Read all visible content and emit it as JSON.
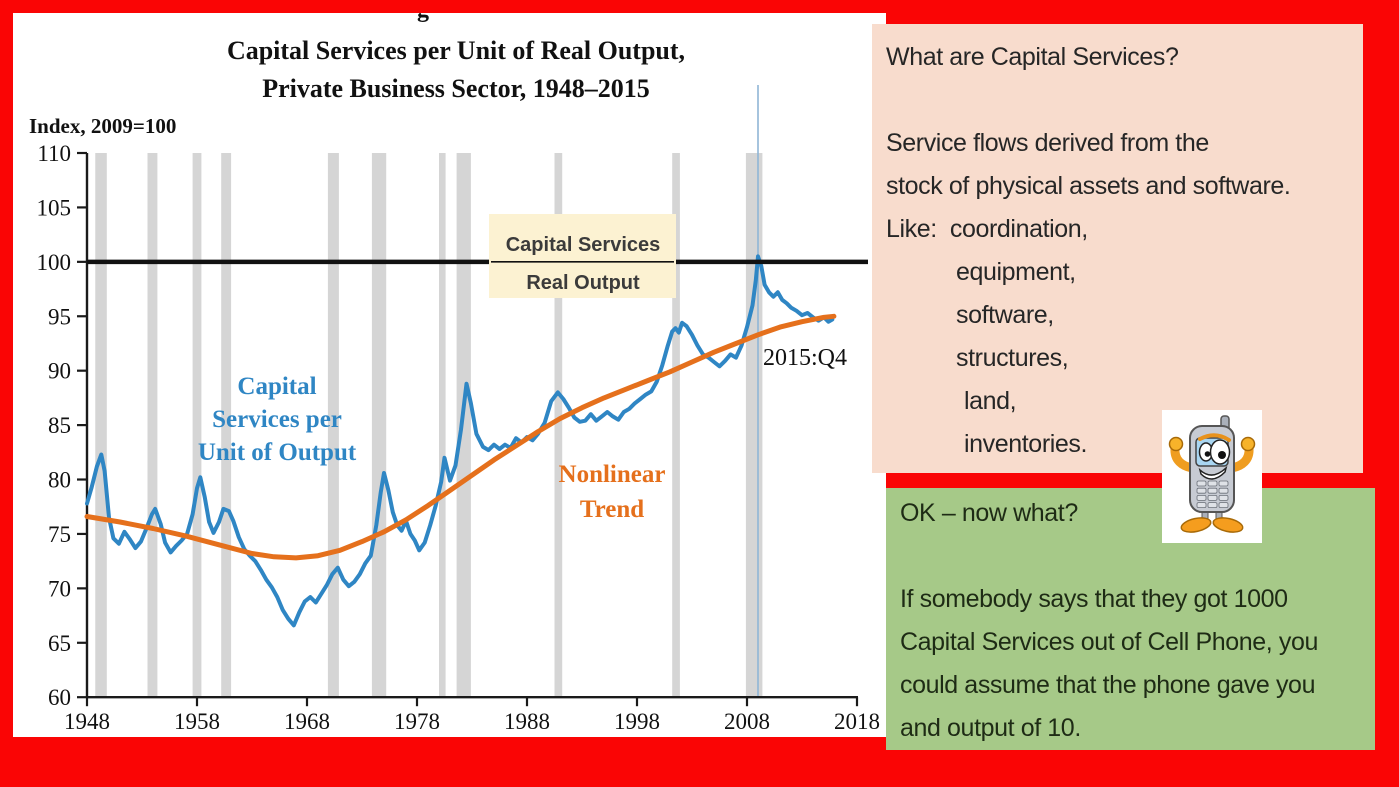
{
  "slide": {
    "cropped_heading_fragment": "g"
  },
  "chart": {
    "title_line1": "Capital Services per Unit of Real Output,",
    "title_line2": "Private Business Sector, 1948–2015",
    "axis_note": "Index, 2009=100",
    "annotations": {
      "series_label_line1": "Capital",
      "series_label_line2": "Services per",
      "series_label_line3": "Unit of Output",
      "trend_label_line1": "Nonlinear",
      "trend_label_line2": "Trend",
      "end_label": "2015:Q4",
      "legend_numerator": "Capital Services",
      "legend_denominator": "Real Output"
    },
    "colors": {
      "series_blue": "#2f86c4",
      "trend_orange": "#e5701c",
      "recession_gray": "#d5d5d5",
      "legend_bg": "#fcf2d2",
      "reference_black": "#111111",
      "marker_line_blue": "#8fb6d6",
      "slide_border_red": "#fa0505",
      "pink_panel": "#f8dccd",
      "green_panel": "#a6c988"
    }
  },
  "chart_data": {
    "type": "line",
    "title": "Capital Services per Unit of Real Output, Private Business Sector, 1948–2015",
    "ylabel": "Index, 2009=100",
    "xlabel": "",
    "xlim": [
      1948,
      2018
    ],
    "ylim": [
      60,
      110
    ],
    "x_ticks": [
      1948,
      1958,
      1968,
      1978,
      1988,
      1998,
      2008,
      2018
    ],
    "y_ticks": [
      60,
      65,
      70,
      75,
      80,
      85,
      90,
      95,
      100,
      105,
      110
    ],
    "grid": false,
    "reference_line_y": 100,
    "vertical_marker_year": 2009,
    "recession_bands": [
      [
        1948.75,
        1949.8
      ],
      [
        1953.5,
        1954.4
      ],
      [
        1957.6,
        1958.4
      ],
      [
        1960.2,
        1961.1
      ],
      [
        1969.9,
        1970.9
      ],
      [
        1973.9,
        1975.2
      ],
      [
        1980.0,
        1980.6
      ],
      [
        1981.6,
        1982.9
      ],
      [
        1990.5,
        1991.2
      ],
      [
        2001.2,
        2001.9
      ],
      [
        2007.9,
        2009.4
      ]
    ],
    "series": [
      {
        "name": "Capital Services per Unit of Output",
        "color": "#2f86c4",
        "points": [
          [
            1948.0,
            77.8
          ],
          [
            1948.4,
            79.2
          ],
          [
            1948.9,
            81.2
          ],
          [
            1949.3,
            82.3
          ],
          [
            1949.6,
            80.8
          ],
          [
            1950.0,
            76.5
          ],
          [
            1950.4,
            74.6
          ],
          [
            1950.9,
            74.1
          ],
          [
            1951.4,
            75.2
          ],
          [
            1951.9,
            74.5
          ],
          [
            1952.4,
            73.7
          ],
          [
            1952.9,
            74.3
          ],
          [
            1953.4,
            75.5
          ],
          [
            1953.9,
            76.8
          ],
          [
            1954.2,
            77.3
          ],
          [
            1954.7,
            75.9
          ],
          [
            1955.1,
            74.2
          ],
          [
            1955.6,
            73.3
          ],
          [
            1956.1,
            73.9
          ],
          [
            1956.6,
            74.4
          ],
          [
            1957.1,
            75.0
          ],
          [
            1957.6,
            76.8
          ],
          [
            1958.0,
            79.2
          ],
          [
            1958.3,
            80.2
          ],
          [
            1958.7,
            78.4
          ],
          [
            1959.1,
            76.1
          ],
          [
            1959.5,
            75.1
          ],
          [
            1960.0,
            76.1
          ],
          [
            1960.4,
            77.3
          ],
          [
            1960.9,
            77.1
          ],
          [
            1961.3,
            76.2
          ],
          [
            1961.8,
            74.7
          ],
          [
            1962.3,
            73.6
          ],
          [
            1962.8,
            73.0
          ],
          [
            1963.3,
            72.5
          ],
          [
            1963.8,
            71.7
          ],
          [
            1964.3,
            70.8
          ],
          [
            1964.8,
            70.1
          ],
          [
            1965.3,
            69.2
          ],
          [
            1965.8,
            68.0
          ],
          [
            1966.3,
            67.2
          ],
          [
            1966.8,
            66.6
          ],
          [
            1967.3,
            67.8
          ],
          [
            1967.8,
            68.8
          ],
          [
            1968.3,
            69.2
          ],
          [
            1968.8,
            68.7
          ],
          [
            1969.3,
            69.5
          ],
          [
            1969.8,
            70.3
          ],
          [
            1970.3,
            71.3
          ],
          [
            1970.8,
            71.9
          ],
          [
            1971.3,
            70.8
          ],
          [
            1971.8,
            70.2
          ],
          [
            1972.3,
            70.6
          ],
          [
            1972.8,
            71.3
          ],
          [
            1973.3,
            72.3
          ],
          [
            1973.8,
            73.0
          ],
          [
            1974.3,
            75.8
          ],
          [
            1974.7,
            78.8
          ],
          [
            1975.0,
            80.6
          ],
          [
            1975.4,
            79.0
          ],
          [
            1975.8,
            77.0
          ],
          [
            1976.2,
            75.8
          ],
          [
            1976.6,
            75.3
          ],
          [
            1977.0,
            76.2
          ],
          [
            1977.4,
            75.0
          ],
          [
            1977.8,
            74.4
          ],
          [
            1978.2,
            73.5
          ],
          [
            1978.7,
            74.2
          ],
          [
            1979.2,
            75.8
          ],
          [
            1979.7,
            77.6
          ],
          [
            1980.2,
            79.8
          ],
          [
            1980.5,
            82.0
          ],
          [
            1981.0,
            79.9
          ],
          [
            1981.5,
            81.3
          ],
          [
            1982.0,
            84.6
          ],
          [
            1982.5,
            88.8
          ],
          [
            1982.9,
            87.0
          ],
          [
            1983.4,
            84.2
          ],
          [
            1984.0,
            83.0
          ],
          [
            1984.5,
            82.7
          ],
          [
            1985.0,
            83.2
          ],
          [
            1985.5,
            82.8
          ],
          [
            1986.0,
            83.2
          ],
          [
            1986.5,
            82.9
          ],
          [
            1987.0,
            83.8
          ],
          [
            1987.5,
            83.4
          ],
          [
            1988.0,
            83.9
          ],
          [
            1988.5,
            83.6
          ],
          [
            1989.0,
            84.2
          ],
          [
            1989.6,
            85.2
          ],
          [
            1990.2,
            87.2
          ],
          [
            1990.8,
            88.0
          ],
          [
            1991.3,
            87.4
          ],
          [
            1991.8,
            86.6
          ],
          [
            1992.3,
            85.7
          ],
          [
            1992.8,
            85.3
          ],
          [
            1993.3,
            85.4
          ],
          [
            1993.8,
            86.0
          ],
          [
            1994.3,
            85.4
          ],
          [
            1994.8,
            85.8
          ],
          [
            1995.3,
            86.2
          ],
          [
            1995.8,
            85.8
          ],
          [
            1996.3,
            85.5
          ],
          [
            1996.8,
            86.2
          ],
          [
            1997.3,
            86.5
          ],
          [
            1997.8,
            87.0
          ],
          [
            1998.3,
            87.4
          ],
          [
            1998.8,
            87.8
          ],
          [
            1999.3,
            88.1
          ],
          [
            1999.8,
            89.0
          ],
          [
            2000.3,
            90.5
          ],
          [
            2000.8,
            92.3
          ],
          [
            2001.2,
            93.6
          ],
          [
            2001.5,
            93.9
          ],
          [
            2001.8,
            93.5
          ],
          [
            2002.1,
            94.4
          ],
          [
            2002.5,
            94.1
          ],
          [
            2003.0,
            93.3
          ],
          [
            2003.5,
            92.3
          ],
          [
            2004.0,
            91.5
          ],
          [
            2004.5,
            91.2
          ],
          [
            2005.0,
            90.8
          ],
          [
            2005.5,
            90.4
          ],
          [
            2006.0,
            90.9
          ],
          [
            2006.5,
            91.5
          ],
          [
            2007.0,
            91.2
          ],
          [
            2007.5,
            92.3
          ],
          [
            2008.0,
            94.0
          ],
          [
            2008.5,
            96.0
          ],
          [
            2008.8,
            98.3
          ],
          [
            2009.0,
            100.5
          ],
          [
            2009.3,
            99.6
          ],
          [
            2009.6,
            97.9
          ],
          [
            2010.0,
            97.2
          ],
          [
            2010.4,
            96.8
          ],
          [
            2010.8,
            97.2
          ],
          [
            2011.2,
            96.5
          ],
          [
            2011.6,
            96.2
          ],
          [
            2012.0,
            95.8
          ],
          [
            2012.5,
            95.5
          ],
          [
            2013.0,
            95.1
          ],
          [
            2013.5,
            95.3
          ],
          [
            2014.0,
            94.9
          ],
          [
            2014.5,
            94.6
          ],
          [
            2015.0,
            94.9
          ],
          [
            2015.4,
            94.5
          ],
          [
            2015.75,
            94.7
          ]
        ]
      },
      {
        "name": "Nonlinear Trend",
        "color": "#e5701c",
        "points": [
          [
            1948,
            76.6
          ],
          [
            1951,
            76.1
          ],
          [
            1954,
            75.5
          ],
          [
            1957,
            74.8
          ],
          [
            1960,
            74.0
          ],
          [
            1963,
            73.2
          ],
          [
            1965,
            72.9
          ],
          [
            1967,
            72.8
          ],
          [
            1969,
            73.0
          ],
          [
            1971,
            73.5
          ],
          [
            1973,
            74.3
          ],
          [
            1975,
            75.2
          ],
          [
            1977,
            76.3
          ],
          [
            1979,
            77.6
          ],
          [
            1981,
            79.0
          ],
          [
            1983,
            80.4
          ],
          [
            1985,
            81.8
          ],
          [
            1987,
            83.1
          ],
          [
            1989,
            84.4
          ],
          [
            1991,
            85.6
          ],
          [
            1993,
            86.6
          ],
          [
            1995,
            87.5
          ],
          [
            1997,
            88.3
          ],
          [
            1999,
            89.1
          ],
          [
            2001,
            89.9
          ],
          [
            2003,
            90.8
          ],
          [
            2005,
            91.7
          ],
          [
            2007,
            92.5
          ],
          [
            2009,
            93.3
          ],
          [
            2011,
            94.0
          ],
          [
            2013,
            94.5
          ],
          [
            2015,
            94.9
          ],
          [
            2015.9,
            95.0
          ]
        ]
      }
    ]
  },
  "pink_box": {
    "lines": [
      "What are Capital Services?",
      "",
      "Service flows derived from the",
      "stock of physical assets and software.",
      "Like:  coordination,",
      "equipment,",
      "software,",
      "structures,",
      "land,",
      "inventories."
    ]
  },
  "green_box": {
    "lines": [
      "OK – now what?",
      "",
      "If somebody says that they got 1000",
      "Capital Services out of Cell Phone, you",
      "could assume that the phone gave you",
      "and output of 10."
    ]
  }
}
